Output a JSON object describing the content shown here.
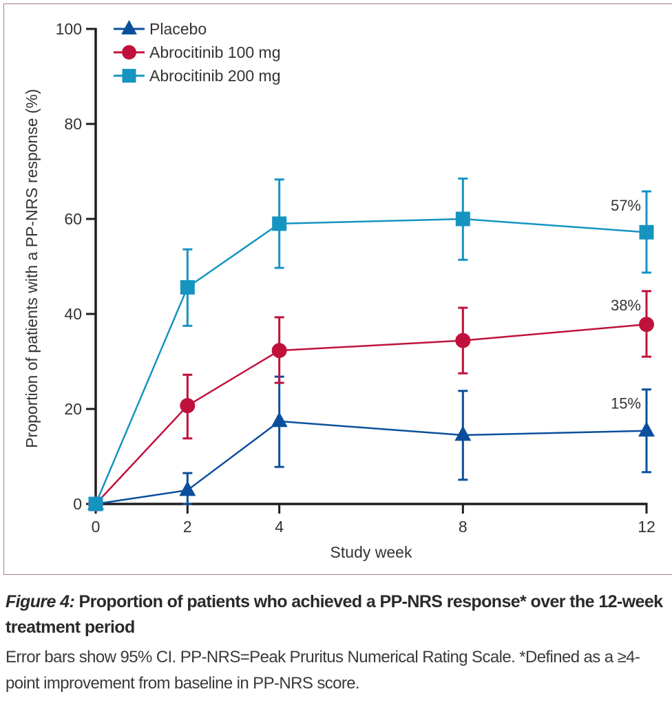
{
  "chart_data": {
    "type": "line",
    "title": "",
    "xlabel": "Study week",
    "ylabel": "Proportion of patients with a PP-NRS response (%)",
    "x": [
      0,
      2,
      4,
      8,
      12
    ],
    "xticks": [
      "0",
      "2",
      "4",
      "8",
      "12"
    ],
    "xlim": [
      0,
      12
    ],
    "ylim": [
      0,
      100
    ],
    "yticks": [
      "0",
      "20",
      "40",
      "60",
      "80",
      "100"
    ],
    "grid": false,
    "legend_position": "top-left",
    "error_bars": "95% CI",
    "series": [
      {
        "name": "Placebo",
        "marker": "triangle",
        "color": "#0b4f9c",
        "values": [
          0,
          2.9,
          17.4,
          14.5,
          15.4
        ],
        "ci_low": [
          0,
          0,
          7.8,
          5.1,
          6.7
        ],
        "ci_high": [
          0,
          6.5,
          26.8,
          23.8,
          24.1
        ],
        "end_label": "15%"
      },
      {
        "name": "Abrocitinib 100 mg",
        "marker": "circle",
        "color": "#c0113c",
        "values": [
          0,
          20.7,
          32.3,
          34.4,
          37.8
        ],
        "ci_low": [
          0,
          13.8,
          25.5,
          27.5,
          31.0
        ],
        "ci_high": [
          0,
          27.2,
          39.3,
          41.3,
          44.8
        ],
        "end_label": "38%"
      },
      {
        "name": "Abrocitinib 200 mg",
        "marker": "square",
        "color": "#1594c0",
        "values": [
          0,
          45.6,
          59.0,
          60.0,
          57.2
        ],
        "ci_low": [
          0,
          37.5,
          49.7,
          51.4,
          48.7
        ],
        "ci_high": [
          0,
          53.6,
          68.3,
          68.5,
          65.8
        ],
        "end_label": "57%"
      }
    ]
  },
  "caption": {
    "figure_label": "Figure 4:",
    "title": " Proportion of patients who achieved a PP-NRS response* over the 12-week treatment period",
    "note": "Error bars show 95% CI. PP-NRS=Peak Pruritus Numerical Rating Scale. *Defined as a ≥4-point improvement from baseline in PP-NRS score."
  },
  "frame_color": "#b07a8c"
}
